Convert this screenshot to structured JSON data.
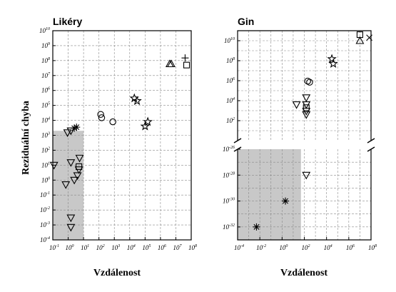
{
  "y_axis_label": "Reziduální chyba",
  "x_axis_label": "Vzdálenost",
  "chart_data": [
    {
      "type": "scatter",
      "title": "Likéry",
      "xlabel": "Vzdálenost",
      "ylabel": "Reziduální chyba",
      "scale": "log-log",
      "xlim": [
        0.1,
        100000000
      ],
      "ylim": [
        0.0001,
        10000000000
      ],
      "grid": true,
      "shaded_region": {
        "x": [
          0.1,
          10
        ],
        "y": [
          0.0001,
          2000
        ]
      },
      "points": [
        {
          "marker": "triangle-down",
          "x": 0.9,
          "y": 1500
        },
        {
          "marker": "triangle-down",
          "x": 1.5,
          "y": 2000
        },
        {
          "marker": "triangle-down",
          "x": 0.12,
          "y": 10
        },
        {
          "marker": "triangle-down",
          "x": 1.5,
          "y": 15
        },
        {
          "marker": "triangle-down",
          "x": 0.7,
          "y": 0.5
        },
        {
          "marker": "triangle-down",
          "x": 2.5,
          "y": 1
        },
        {
          "marker": "triangle-down",
          "x": 4,
          "y": 2
        },
        {
          "marker": "triangle-down",
          "x": 5,
          "y": 5
        },
        {
          "marker": "triangle-down",
          "x": 5.5,
          "y": 30
        },
        {
          "marker": "triangle-down",
          "x": 1.5,
          "y": 0.003
        },
        {
          "marker": "triangle-down",
          "x": 1.5,
          "y": 0.0007
        },
        {
          "marker": "square",
          "x": 5,
          "y": 8
        },
        {
          "marker": "asterisk",
          "x": 2.5,
          "y": 3000
        },
        {
          "marker": "asterisk",
          "x": 3.5,
          "y": 3500
        },
        {
          "marker": "circle",
          "x": 150,
          "y": 15000
        },
        {
          "marker": "circle",
          "x": 130,
          "y": 25000
        },
        {
          "marker": "circle",
          "x": 800,
          "y": 8000
        },
        {
          "marker": "star",
          "x": 20000,
          "y": 300000
        },
        {
          "marker": "star",
          "x": 30000,
          "y": 200000
        },
        {
          "marker": "star",
          "x": 100000,
          "y": 4000
        },
        {
          "marker": "star",
          "x": 150000,
          "y": 8000
        },
        {
          "marker": "triangle-up",
          "x": 4000000,
          "y": 60000000
        },
        {
          "marker": "triangle-up",
          "x": 5000000,
          "y": 60000000
        },
        {
          "marker": "plus",
          "x": 40000000,
          "y": 150000000
        },
        {
          "marker": "square",
          "x": 50000000,
          "y": 50000000
        }
      ]
    },
    {
      "type": "scatter",
      "title": "Gin",
      "xlabel": "Vzdálenost",
      "ylabel": "Reziduální chyba",
      "scale": "log-log",
      "y_axis_break": true,
      "xlim": [
        0.0001,
        100000000
      ],
      "ylim_upper": [
        1,
        100000000000
      ],
      "ylim_lower": [
        1e-33,
        1e-26
      ],
      "grid": true,
      "shaded_region": {
        "x": [
          0.0001,
          50
        ],
        "y": [
          1e-33,
          1e-26
        ]
      },
      "points": [
        {
          "marker": "square",
          "x": 10000000,
          "y": 40000000000
        },
        {
          "marker": "x",
          "x": 70000000,
          "y": 20000000000
        },
        {
          "marker": "triangle-up",
          "x": 10000000,
          "y": 10000000000
        },
        {
          "marker": "star",
          "x": 30000,
          "y": 150000000
        },
        {
          "marker": "star",
          "x": 40000,
          "y": 50000000
        },
        {
          "marker": "circle",
          "x": 200,
          "y": 900000
        },
        {
          "marker": "circle",
          "x": 300,
          "y": 700000
        },
        {
          "marker": "triangle-down",
          "x": 150,
          "y": 20000
        },
        {
          "marker": "triangle-down",
          "x": 20,
          "y": 4000
        },
        {
          "marker": "triangle-down",
          "x": 150,
          "y": 4000
        },
        {
          "marker": "square",
          "x": 150,
          "y": 2000
        },
        {
          "marker": "triangle-down",
          "x": 150,
          "y": 900
        },
        {
          "marker": "triangle-down",
          "x": 150,
          "y": 400
        },
        {
          "marker": "triangle-down",
          "x": 150,
          "y": 1e-28
        },
        {
          "marker": "asterisk",
          "x": 2,
          "y": 1e-30
        },
        {
          "marker": "asterisk",
          "x": 0.005,
          "y": 1e-32
        }
      ]
    }
  ]
}
